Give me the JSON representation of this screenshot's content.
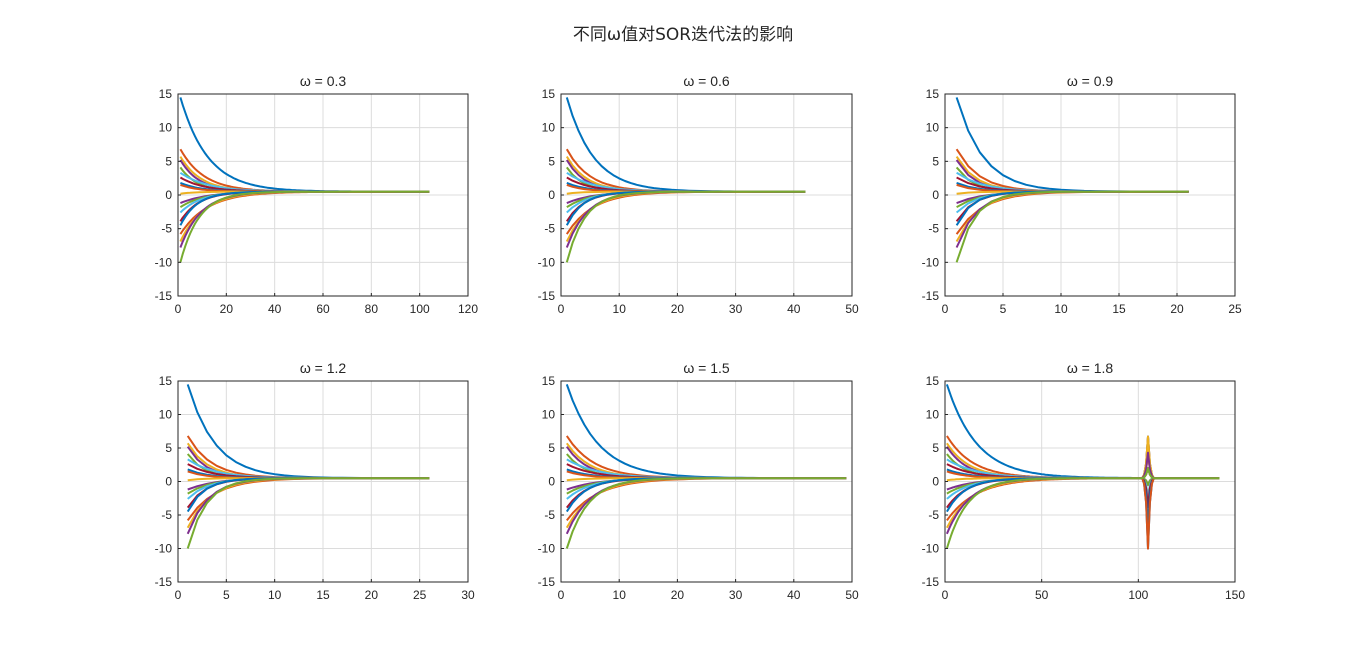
{
  "figure": {
    "title": "不同ω值对SOR迭代法的影响"
  },
  "palette": [
    "#0072BD",
    "#D95319",
    "#EDB120",
    "#7E2F8E",
    "#77AC30",
    "#4DBEEE",
    "#A2142F"
  ],
  "chart_data": [
    {
      "type": "line",
      "title": "ω = 0.3",
      "omega": 0.3,
      "xlim": [
        0,
        120
      ],
      "ylim": [
        -15,
        15
      ],
      "xticks": [
        0,
        20,
        40,
        60,
        80,
        100,
        120
      ],
      "yticks": [
        -15,
        -10,
        -5,
        0,
        5,
        10,
        15
      ],
      "grid": true,
      "iterations": 104,
      "converge_value": 0.5,
      "initial_values": [
        14.5,
        6.8,
        5.7,
        5.2,
        4.1,
        3.3,
        2.6,
        1.8,
        1.5,
        0.2,
        -1.2,
        -1.8,
        -2.6,
        -3.9,
        -4.5,
        -5.8,
        -6.9,
        -7.8,
        -10.0
      ]
    },
    {
      "type": "line",
      "title": "ω = 0.6",
      "omega": 0.6,
      "xlim": [
        0,
        50
      ],
      "ylim": [
        -15,
        15
      ],
      "xticks": [
        0,
        10,
        20,
        30,
        40,
        50
      ],
      "yticks": [
        -15,
        -10,
        -5,
        0,
        5,
        10,
        15
      ],
      "grid": true,
      "iterations": 42,
      "converge_value": 0.5,
      "initial_values": [
        14.5,
        6.8,
        5.7,
        5.2,
        4.1,
        3.3,
        2.6,
        1.8,
        1.5,
        0.2,
        -1.2,
        -1.8,
        -2.6,
        -3.9,
        -4.5,
        -5.8,
        -6.9,
        -7.8,
        -10.0
      ]
    },
    {
      "type": "line",
      "title": "ω = 0.9",
      "omega": 0.9,
      "xlim": [
        0,
        25
      ],
      "ylim": [
        -15,
        15
      ],
      "xticks": [
        0,
        5,
        10,
        15,
        20,
        25
      ],
      "yticks": [
        -15,
        -10,
        -5,
        0,
        5,
        10,
        15
      ],
      "grid": true,
      "iterations": 21,
      "converge_value": 0.5,
      "initial_values": [
        14.5,
        6.8,
        5.7,
        5.2,
        4.1,
        3.3,
        2.6,
        1.8,
        1.5,
        0.2,
        -1.2,
        -1.8,
        -2.6,
        -3.9,
        -4.5,
        -5.8,
        -6.9,
        -7.8,
        -10.0
      ]
    },
    {
      "type": "line",
      "title": "ω = 1.2",
      "omega": 1.2,
      "xlim": [
        0,
        30
      ],
      "ylim": [
        -15,
        15
      ],
      "xticks": [
        0,
        5,
        10,
        15,
        20,
        25,
        30
      ],
      "yticks": [
        -15,
        -10,
        -5,
        0,
        5,
        10,
        15
      ],
      "grid": true,
      "iterations": 26,
      "converge_value": 0.5,
      "initial_values": [
        14.5,
        6.8,
        5.7,
        5.2,
        4.1,
        3.3,
        2.6,
        1.8,
        1.5,
        0.2,
        -1.2,
        -1.8,
        -2.6,
        -3.9,
        -4.5,
        -5.8,
        -6.9,
        -7.8,
        -10.0
      ]
    },
    {
      "type": "line",
      "title": "ω = 1.5",
      "omega": 1.5,
      "xlim": [
        0,
        50
      ],
      "ylim": [
        -15,
        15
      ],
      "xticks": [
        0,
        10,
        20,
        30,
        40,
        50
      ],
      "yticks": [
        -15,
        -10,
        -5,
        0,
        5,
        10,
        15
      ],
      "grid": true,
      "iterations": 49,
      "converge_value": 0.5,
      "initial_values": [
        14.5,
        6.8,
        5.7,
        5.2,
        4.1,
        3.3,
        2.6,
        1.8,
        1.5,
        0.2,
        -1.2,
        -1.8,
        -2.6,
        -3.9,
        -4.5,
        -5.8,
        -6.9,
        -7.8,
        -10.0
      ]
    },
    {
      "type": "line",
      "title": "ω = 1.8",
      "omega": 1.8,
      "xlim": [
        0,
        150
      ],
      "ylim": [
        -15,
        15
      ],
      "xticks": [
        0,
        50,
        100,
        150
      ],
      "yticks": [
        -15,
        -10,
        -5,
        0,
        5,
        10,
        15
      ],
      "grid": true,
      "iterations": 142,
      "converge_value": 0.5,
      "spike": {
        "x": 105,
        "values": [
          6.7,
          4.3,
          2.0,
          -0.5,
          -2.5,
          -3.8,
          -7.0,
          -10.0
        ]
      },
      "initial_values": [
        14.5,
        6.8,
        5.7,
        5.2,
        4.1,
        3.3,
        2.6,
        1.8,
        1.5,
        0.2,
        -1.2,
        -1.8,
        -2.6,
        -3.9,
        -4.5,
        -5.8,
        -6.9,
        -7.8,
        -10.0
      ]
    }
  ]
}
